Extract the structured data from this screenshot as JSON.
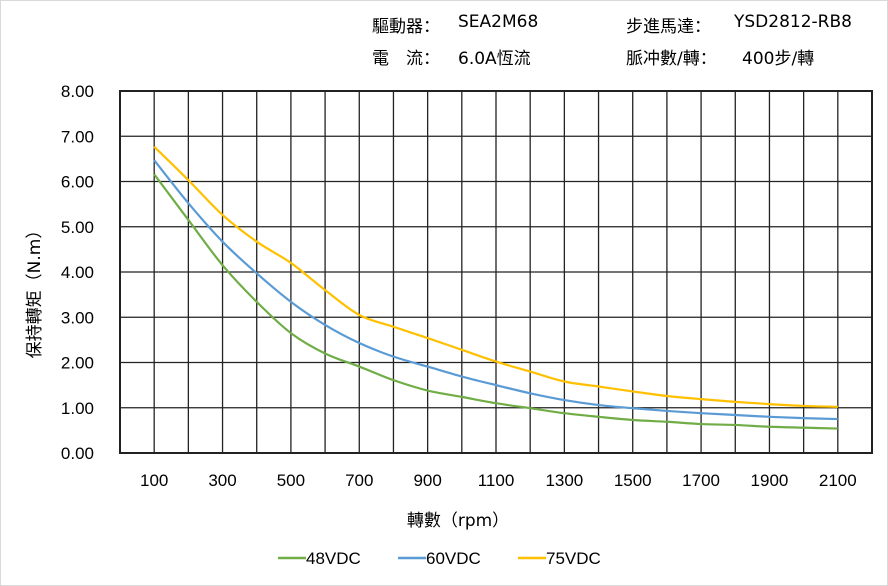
{
  "header": {
    "driver_label": "驅動器：",
    "driver_value": "SEA2M68",
    "motor_label": "步進馬達：",
    "motor_value": "YSD2812-RB8",
    "current_label": "電　流：",
    "current_value": "6.0A恆流",
    "pulse_label": "脈冲數/轉：",
    "pulse_value": "400步/轉"
  },
  "chart_data": {
    "type": "line",
    "title": "",
    "xlabel": "轉數（rpm）",
    "ylabel": "保持轉矩（N.m）",
    "xlim": [
      0,
      2200
    ],
    "ylim": [
      0,
      8
    ],
    "grid": true,
    "legend_position": "bottom",
    "x_ticks": [
      100,
      300,
      500,
      700,
      900,
      1100,
      1300,
      1500,
      1700,
      1900,
      2100
    ],
    "y_ticks": [
      "0.00",
      "1.00",
      "2.00",
      "3.00",
      "4.00",
      "5.00",
      "6.00",
      "7.00",
      "8.00"
    ],
    "x": [
      100,
      200,
      300,
      400,
      500,
      600,
      700,
      800,
      900,
      1000,
      1100,
      1200,
      1300,
      1400,
      1500,
      1600,
      1700,
      1800,
      1900,
      2000,
      2100
    ],
    "series": [
      {
        "name": "48VDC",
        "color": "#70ad47",
        "values": [
          6.16,
          5.15,
          4.15,
          3.34,
          2.65,
          2.2,
          1.91,
          1.61,
          1.38,
          1.24,
          1.1,
          0.99,
          0.88,
          0.8,
          0.73,
          0.69,
          0.64,
          0.62,
          0.58,
          0.56,
          0.54
        ]
      },
      {
        "name": "60VDC",
        "color": "#5b9bd5",
        "values": [
          6.47,
          5.52,
          4.67,
          3.97,
          3.34,
          2.83,
          2.43,
          2.13,
          1.91,
          1.69,
          1.5,
          1.32,
          1.17,
          1.06,
          0.99,
          0.93,
          0.88,
          0.84,
          0.8,
          0.77,
          0.75
        ]
      },
      {
        "name": "75VDC",
        "color": "#ffc000",
        "values": [
          6.77,
          6.03,
          5.26,
          4.67,
          4.2,
          3.6,
          3.05,
          2.79,
          2.54,
          2.28,
          2.02,
          1.8,
          1.58,
          1.47,
          1.36,
          1.26,
          1.19,
          1.13,
          1.08,
          1.04,
          1.02
        ]
      }
    ]
  }
}
